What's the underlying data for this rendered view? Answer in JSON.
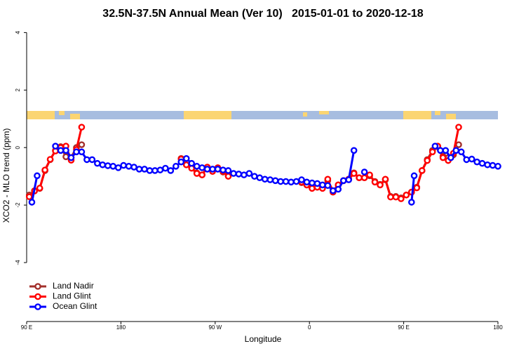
{
  "chart_data": {
    "type": "line",
    "title": "32.5N-37.5N Annual Mean (Ver 10)   2015-01-01 to 2020-12-18",
    "xlabel": "Longitude",
    "ylabel": "XCO2 - MLO trend (ppm)",
    "xlim": [
      90,
      540
    ],
    "ylim": [
      -6.05,
      4.4
    ],
    "xticks": [
      {
        "value": 90,
        "label": "90 E"
      },
      {
        "value": 180,
        "label": "180"
      },
      {
        "value": 270,
        "label": "90 W"
      },
      {
        "value": 360,
        "label": "0"
      },
      {
        "value": 450,
        "label": "90 E"
      },
      {
        "value": 540,
        "label": "180"
      }
    ],
    "yticks": [
      -4,
      -2,
      0,
      2,
      4
    ],
    "legend": "bottom-left",
    "series": [
      {
        "name": "Land Nadir",
        "color": "#a3302c",
        "x": [
          92.5,
          97.5,
          102.5,
          107.5,
          112.5,
          117.5,
          122.5,
          127.5,
          132.5,
          137.5,
          142.5,
          null,
          237.5,
          242.5,
          247.5,
          252.5,
          257.5,
          262.5,
          267.5,
          272.5,
          277.5,
          282.5,
          null,
          352.5,
          357.5,
          362.5,
          367.5,
          372.5,
          377.5,
          382.5,
          387.5,
          392.5,
          397.5,
          402.5,
          407.5,
          412.5,
          417.5,
          422.5,
          427.5,
          432.5,
          437.5,
          442.5,
          447.5,
          452.5,
          457.5,
          462.5,
          467.5,
          472.5,
          477.5,
          482.5,
          487.5,
          492.5,
          497.5,
          502.5
        ],
        "values": [
          -1.65,
          -1.5,
          -1.42,
          -0.8,
          -0.42,
          -0.1,
          0.03,
          -0.32,
          -0.35,
          0.0,
          0.1,
          null,
          -0.38,
          -0.6,
          -0.7,
          -0.88,
          -0.95,
          -0.7,
          -0.82,
          -0.72,
          -0.85,
          -0.98,
          null,
          -1.22,
          -1.3,
          -1.4,
          -1.38,
          -1.4,
          -1.15,
          -1.5,
          -1.3,
          -1.15,
          -1.1,
          -0.88,
          -1.05,
          -1.05,
          -0.98,
          -1.18,
          -1.28,
          -1.12,
          -1.7,
          -1.7,
          -1.75,
          -1.65,
          -1.55,
          -1.38,
          -0.8,
          -0.42,
          -0.1,
          0.03,
          -0.3,
          -0.35,
          -0.25,
          0.1
        ]
      },
      {
        "name": "Land Glint",
        "color": "#ff0000",
        "x": [
          92.5,
          97.5,
          102.5,
          107.5,
          112.5,
          117.5,
          122.5,
          127.5,
          132.5,
          137.5,
          142.5,
          null,
          237.5,
          242.5,
          247.5,
          252.5,
          257.5,
          262.5,
          267.5,
          272.5,
          277.5,
          282.5,
          null,
          352.5,
          357.5,
          362.5,
          367.5,
          372.5,
          377.5,
          382.5,
          387.5,
          392.5,
          397.5,
          402.5,
          407.5,
          412.5,
          417.5,
          422.5,
          427.5,
          432.5,
          437.5,
          442.5,
          447.5,
          452.5,
          457.5,
          462.5,
          467.5,
          472.5,
          477.5,
          482.5,
          487.5,
          492.5,
          497.5,
          502.5
        ],
        "values": [
          -1.71,
          -1.51,
          -1.41,
          -0.78,
          -0.41,
          -0.12,
          0.0,
          0.05,
          -0.44,
          -0.07,
          0.71,
          null,
          -0.4,
          -0.6,
          -0.72,
          -0.9,
          -0.95,
          -0.68,
          -0.83,
          -0.7,
          -0.83,
          -1.0,
          null,
          -1.2,
          -1.3,
          -1.42,
          -1.38,
          -1.42,
          -1.1,
          -1.55,
          -1.3,
          -1.15,
          -1.1,
          -0.9,
          -1.05,
          -1.05,
          -0.95,
          -1.2,
          -1.3,
          -1.1,
          -1.72,
          -1.72,
          -1.78,
          -1.65,
          -1.55,
          -1.4,
          -0.8,
          -0.45,
          -0.15,
          0.05,
          -0.35,
          -0.45,
          -0.2,
          0.71
        ]
      },
      {
        "name": "Ocean Glint",
        "color": "#0000ff",
        "x": [
          95,
          100,
          null,
          117.5,
          122.5,
          127.5,
          132.5,
          137.5,
          142.5,
          147.5,
          152.5,
          157.5,
          162.5,
          167.5,
          172.5,
          177.5,
          182.5,
          187.5,
          192.5,
          197.5,
          202.5,
          207.5,
          212.5,
          217.5,
          222.5,
          227.5,
          232.5,
          237.5,
          242.5,
          247.5,
          252.5,
          257.5,
          262.5,
          267.5,
          272.5,
          277.5,
          282.5,
          287.5,
          292.5,
          297.5,
          302.5,
          307.5,
          312.5,
          317.5,
          322.5,
          327.5,
          332.5,
          337.5,
          342.5,
          347.5,
          352.5,
          357.5,
          362.5,
          367.5,
          372.5,
          377.5,
          382.5,
          387.5,
          392.5,
          397.5,
          402.5,
          null,
          412.5,
          null,
          457.5,
          460,
          null,
          480,
          485,
          490,
          495,
          500,
          505,
          510,
          515,
          520,
          525,
          530,
          535,
          540
        ],
        "values": [
          -1.9,
          -0.98,
          null,
          0.05,
          -0.1,
          -0.1,
          -0.35,
          -0.15,
          -0.15,
          -0.42,
          -0.42,
          -0.55,
          -0.6,
          -0.63,
          -0.65,
          -0.7,
          -0.62,
          -0.65,
          -0.68,
          -0.75,
          -0.75,
          -0.8,
          -0.8,
          -0.78,
          -0.72,
          -0.8,
          -0.65,
          -0.5,
          -0.38,
          -0.55,
          -0.65,
          -0.7,
          -0.75,
          -0.75,
          -0.75,
          -0.78,
          -0.8,
          -0.9,
          -0.92,
          -0.95,
          -0.9,
          -1.0,
          -1.05,
          -1.1,
          -1.12,
          -1.15,
          -1.18,
          -1.18,
          -1.2,
          -1.18,
          -1.12,
          -1.2,
          -1.23,
          -1.25,
          -1.3,
          -1.32,
          -1.5,
          -1.45,
          -1.15,
          -1.12,
          -0.1,
          null,
          -0.85,
          null,
          -1.9,
          -0.98,
          null,
          0.05,
          -0.1,
          -0.1,
          -0.35,
          -0.1,
          -0.15,
          -0.42,
          -0.4,
          -0.5,
          -0.55,
          -0.6,
          -0.62,
          -0.65
        ]
      }
    ]
  }
}
